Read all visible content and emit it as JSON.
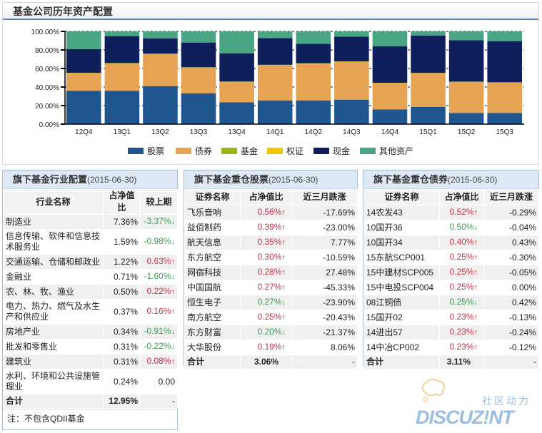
{
  "chart_panel": {
    "title": "基金公司历年资产配置"
  },
  "chart_data": {
    "type": "bar",
    "stacked": true,
    "title": "基金公司历年资产配置",
    "xlabel": "",
    "ylabel": "",
    "ylim": [
      0,
      100
    ],
    "yticks": [
      "0.00%",
      "20.00%",
      "40.00%",
      "60.00%",
      "80.00%",
      "100.00%"
    ],
    "ytick_values": [
      0,
      20,
      40,
      60,
      80,
      100
    ],
    "grid": true,
    "legend_position": "bottom",
    "categories": [
      "12Q4",
      "13Q1",
      "13Q2",
      "13Q3",
      "13Q4",
      "14Q1",
      "14Q2",
      "14Q3",
      "14Q4",
      "15Q1",
      "15Q2",
      "15Q3"
    ],
    "series": [
      {
        "name": "股票",
        "color": "#1f5690",
        "values": [
          36,
          36,
          41,
          33.3,
          23.6,
          25.6,
          25.6,
          26.4,
          15.9,
          18.7,
          12,
          12
        ]
      },
      {
        "name": "债券",
        "color": "#e5a353",
        "values": [
          19.1,
          29.4,
          34.6,
          27.7,
          22,
          38,
          39.8,
          41,
          28.5,
          36.4,
          33.6,
          32.9
        ]
      },
      {
        "name": "基金",
        "color": "#9bb618",
        "values": [
          0.3,
          0.5,
          0.4,
          0.3,
          0.3,
          0.4,
          0.3,
          0.3,
          0.2,
          0.2,
          0.2,
          0.2
        ]
      },
      {
        "name": "权证",
        "color": "#f2c500",
        "values": [
          0,
          0,
          0,
          0,
          0,
          0,
          0,
          0,
          0,
          0,
          0,
          0
        ]
      },
      {
        "name": "现金",
        "color": "#0e1f5b",
        "values": [
          25.4,
          29,
          16.3,
          26.7,
          30.5,
          28.8,
          21,
          26.7,
          39.5,
          40.3,
          44.7,
          44.4
        ]
      },
      {
        "name": "其他资产",
        "color": "#4aa585",
        "values": [
          19.2,
          5.1,
          7.7,
          12,
          23.6,
          7.2,
          13.3,
          5.6,
          15.9,
          4.4,
          9.5,
          10.5
        ]
      }
    ]
  },
  "industry_panel": {
    "title": "旗下基金行业配置",
    "date": "(2015-06-30)",
    "headers": [
      "行业名称",
      "占净值比",
      "较上期"
    ],
    "rows": [
      {
        "name": "制造业",
        "ratio": "7.36%",
        "change": "-3.37%",
        "dir": "down"
      },
      {
        "name": "信息传输、软件和信息技术服务业",
        "ratio": "1.59%",
        "change": "-0.98%",
        "dir": "down"
      },
      {
        "name": "交通运输、仓储和邮政业",
        "ratio": "1.22%",
        "change": "0.63%",
        "dir": "up"
      },
      {
        "name": "金融业",
        "ratio": "0.71%",
        "change": "-1.60%",
        "dir": "down"
      },
      {
        "name": "农、林、牧、渔业",
        "ratio": "0.50%",
        "change": "0.22%",
        "dir": "up"
      },
      {
        "name": "电力、热力、燃气及水生产和供应业",
        "ratio": "0.37%",
        "change": "0.16%",
        "dir": "up"
      },
      {
        "name": "房地产业",
        "ratio": "0.34%",
        "change": "-0.91%",
        "dir": "down"
      },
      {
        "name": "批发和零售业",
        "ratio": "0.31%",
        "change": "-0.22%",
        "dir": "down"
      },
      {
        "name": "建筑业",
        "ratio": "0.31%",
        "change": "0.08%",
        "dir": "up"
      },
      {
        "name": "水利、环境和公共设施管理业",
        "ratio": "0.24%",
        "change": "0.00",
        "dir": "none"
      }
    ],
    "total_label": "合计",
    "total_ratio": "12.95%",
    "total_change": "-",
    "note": "注：不包含QDII基金"
  },
  "stock_panel": {
    "title": "旗下基金重仓股票",
    "date": "(2015-06-30)",
    "headers": [
      "证券名称",
      "占净值比",
      "近三月跌涨"
    ],
    "rows": [
      {
        "name": "飞乐音响",
        "ratio": "0.56%",
        "dir": "up",
        "change": "-17.69%"
      },
      {
        "name": "益佰制药",
        "ratio": "0.39%",
        "dir": "up",
        "change": "-23.00%"
      },
      {
        "name": "航天信息",
        "ratio": "0.35%",
        "dir": "up",
        "change": "7.77%"
      },
      {
        "name": "东方航空",
        "ratio": "0.30%",
        "dir": "up",
        "change": "-10.59%"
      },
      {
        "name": "网宿科技",
        "ratio": "0.28%",
        "dir": "up",
        "change": "27.48%"
      },
      {
        "name": "中国国航",
        "ratio": "0.27%",
        "dir": "up",
        "change": "-45.33%"
      },
      {
        "name": "恒生电子",
        "ratio": "0.27%",
        "dir": "down",
        "change": "-23.90%"
      },
      {
        "name": "南方航空",
        "ratio": "0.25%",
        "dir": "up",
        "change": "-20.43%"
      },
      {
        "name": "东方财富",
        "ratio": "0.20%",
        "dir": "down",
        "change": "-21.37%"
      },
      {
        "name": "大华股份",
        "ratio": "0.19%",
        "dir": "up",
        "change": "8.06%"
      }
    ],
    "total_label": "合计",
    "total_ratio": "3.06%",
    "total_change": "-"
  },
  "bond_panel": {
    "title": "旗下基金重仓债券",
    "date": "(2015-06-30)",
    "headers": [
      "证券名称",
      "占净值比",
      "近三月跌涨"
    ],
    "rows": [
      {
        "name": "14农发43",
        "ratio": "0.52%",
        "dir": "up",
        "change": "-0.29%"
      },
      {
        "name": "10国开36",
        "ratio": "0.50%",
        "dir": "down",
        "change": "-0.04%"
      },
      {
        "name": "10国开34",
        "ratio": "0.40%",
        "dir": "up",
        "change": "0.43%"
      },
      {
        "name": "15东航SCP001",
        "ratio": "0.25%",
        "dir": "up",
        "change": "-0.30%"
      },
      {
        "name": "15中建材SCP005",
        "ratio": "0.25%",
        "dir": "up",
        "change": "-0.05%"
      },
      {
        "name": "15中电投SCP004",
        "ratio": "0.25%",
        "dir": "up",
        "change": "0.00%"
      },
      {
        "name": "08江铜债",
        "ratio": "0.25%",
        "dir": "down",
        "change": "0.42%"
      },
      {
        "name": "15国开02",
        "ratio": "0.23%",
        "dir": "up",
        "change": "-0.13%"
      },
      {
        "name": "14进出57",
        "ratio": "0.23%",
        "dir": "up",
        "change": "-0.24%"
      },
      {
        "name": "14中冶CP002",
        "ratio": "0.23%",
        "dir": "up",
        "change": "-0.12%"
      }
    ],
    "total_label": "合计",
    "total_ratio": "3.11%",
    "total_change": "-"
  },
  "arrows": {
    "up": "↑",
    "down": "↓"
  },
  "watermark": {
    "text_cn": "社区动力",
    "text_en": "DISCUZ!NT"
  }
}
